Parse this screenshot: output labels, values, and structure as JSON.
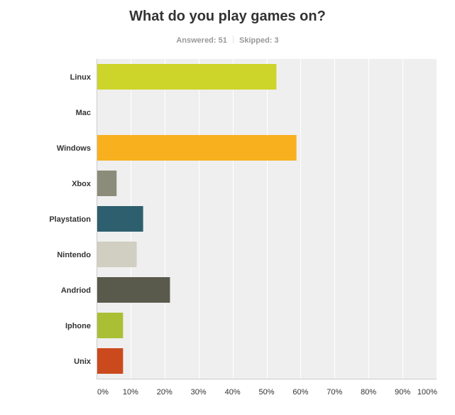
{
  "title": "What do you play games on?",
  "summary": {
    "answered_label": "Answered:",
    "answered_value": "51",
    "skipped_label": "Skipped:",
    "skipped_value": "3"
  },
  "colors": {
    "plot_background": "#efefef",
    "gridline": "#ffffff",
    "axis": "#cccccc",
    "label_text": "#333333"
  },
  "chart_data": {
    "type": "bar",
    "orientation": "horizontal",
    "title": "What do you play games on?",
    "xlabel": "",
    "ylabel": "",
    "xlim": [
      0,
      100
    ],
    "grid": true,
    "x_ticks": [
      "0%",
      "10%",
      "20%",
      "30%",
      "40%",
      "50%",
      "60%",
      "70%",
      "80%",
      "90%",
      "100%"
    ],
    "categories": [
      "Linux",
      "Mac",
      "Windows",
      "Xbox",
      "Playstation",
      "Nintendo",
      "Andriod",
      "Iphone",
      "Unix"
    ],
    "values": [
      52.9,
      0,
      58.8,
      5.9,
      13.7,
      11.8,
      21.6,
      7.8,
      7.8
    ],
    "bar_colors": [
      "#cdd42a",
      "#cccccc",
      "#f8b01e",
      "#8c8c7b",
      "#2e5f6e",
      "#d0cfc1",
      "#5a5a4c",
      "#abbf35",
      "#cb4a1d"
    ]
  }
}
